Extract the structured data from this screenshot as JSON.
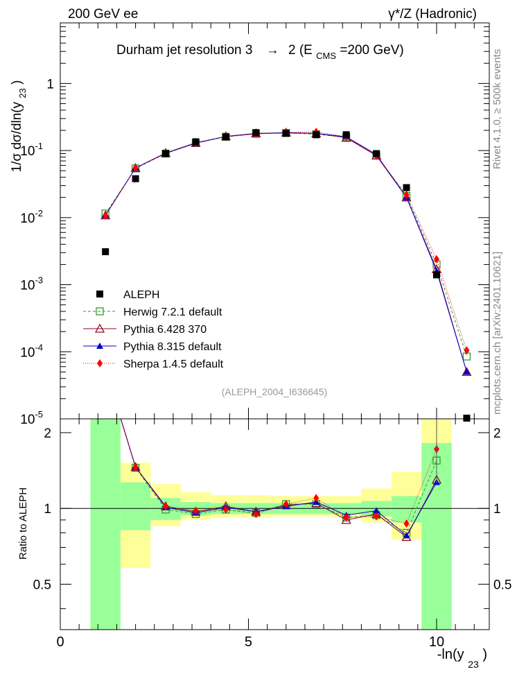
{
  "header": {
    "left": "200 GeV ee",
    "right": "γ*/Z (Hadronic)"
  },
  "side_labels": {
    "rivet": "Rivet 4.1.0, ≥ 500k events",
    "mcplots": "mcplots.cern.ch [arXiv:2401.10621]"
  },
  "chart_data": {
    "type": "scatter",
    "title": "Durham jet resolution 3 → 2 (E_CMS=200 GeV)",
    "title_parts": {
      "main": "Durham jet resolution 3",
      "arrow": "→",
      "after": "2 (E",
      "sub": "CMS",
      "tail": "=200 GeV)"
    },
    "watermark": "(ALEPH_2004_I636645)",
    "xlabel": "-ln(y23)",
    "xlabel_parts": {
      "main": "-ln(y",
      "sub": "23",
      "tail": ")"
    },
    "ylabel": "1/σ dσ/dln(y23)",
    "ylabel_parts": {
      "main": "1/σ  dσ/dln(y",
      "sub": "23",
      "tail": ")"
    },
    "ratio_ylabel": "Ratio to ALEPH",
    "xlim": [
      0,
      11.4
    ],
    "ylim": [
      1e-05,
      8
    ],
    "ratio_ylim": [
      0.33,
      2.27
    ],
    "x_ticks": [
      "0",
      "5",
      "10"
    ],
    "y_ticks": [
      "1",
      "10^-1",
      "10^-2",
      "10^-3",
      "10^-4",
      "10^-5"
    ],
    "ratio_ticks": [
      "2",
      "1",
      "0.5"
    ],
    "bins": [
      [
        0.8,
        1.6
      ],
      [
        1.6,
        2.4
      ],
      [
        2.4,
        3.2
      ],
      [
        3.2,
        4.0
      ],
      [
        4.0,
        4.8
      ],
      [
        4.8,
        5.6
      ],
      [
        5.6,
        6.4
      ],
      [
        6.4,
        7.2
      ],
      [
        7.2,
        8.0
      ],
      [
        8.0,
        8.8
      ],
      [
        8.8,
        9.6
      ],
      [
        9.6,
        10.4
      ],
      [
        10.4,
        11.2
      ]
    ],
    "x": [
      1.2,
      2.0,
      2.8,
      3.6,
      4.4,
      5.2,
      6.0,
      6.8,
      7.6,
      8.4,
      9.2,
      10.0,
      10.8
    ],
    "data": {
      "name": "ALEPH",
      "values": [
        0.0031,
        0.038,
        0.09,
        0.135,
        0.16,
        0.185,
        0.18,
        0.172,
        0.172,
        0.09,
        0.028,
        0.0014,
        6.5e-06
      ]
    },
    "band_inner": [
      [
        0.33,
        2.27
      ],
      [
        0.82,
        1.27
      ],
      [
        0.9,
        1.1
      ],
      [
        0.94,
        1.06
      ],
      [
        0.95,
        1.05
      ],
      [
        0.95,
        1.05
      ],
      [
        0.95,
        1.05
      ],
      [
        0.95,
        1.05
      ],
      [
        0.95,
        1.05
      ],
      [
        0.93,
        1.07
      ],
      [
        0.88,
        1.12
      ],
      [
        0.33,
        1.82
      ],
      [
        0.33,
        0.33
      ]
    ],
    "band_outer": [
      [
        0.33,
        2.27
      ],
      [
        0.58,
        1.52
      ],
      [
        0.85,
        1.25
      ],
      [
        0.9,
        1.16
      ],
      [
        0.92,
        1.13
      ],
      [
        0.92,
        1.13
      ],
      [
        0.93,
        1.12
      ],
      [
        0.93,
        1.12
      ],
      [
        0.92,
        1.12
      ],
      [
        0.88,
        1.2
      ],
      [
        0.75,
        1.4
      ],
      [
        0.33,
        2.27
      ],
      [
        0.33,
        0.33
      ]
    ],
    "series": [
      {
        "name": "Herwig 7.2.1 default",
        "color": "#339933",
        "marker": "open-square",
        "dash": "4,3",
        "values": [
          0.0115,
          0.054,
          0.09,
          0.129,
          0.16,
          0.178,
          0.183,
          0.175,
          0.158,
          0.085,
          0.021,
          0.002,
          8.5e-05
        ],
        "ratio": [
          3.6,
          1.45,
          0.99,
          0.95,
          0.99,
          0.96,
          1.04,
          1.04,
          0.92,
          0.94,
          0.8,
          1.55,
          null
        ]
      },
      {
        "name": "Pythia 6.428 370",
        "color": "#8b0a2a",
        "marker": "open-triangle",
        "dash": "",
        "values": [
          0.0108,
          0.055,
          0.092,
          0.13,
          0.163,
          0.18,
          0.185,
          0.18,
          0.155,
          0.084,
          0.02,
          0.0017,
          5e-05
        ],
        "ratio": [
          3.6,
          1.46,
          1.02,
          0.97,
          1.02,
          0.97,
          1.03,
          1.05,
          0.9,
          0.95,
          0.77,
          1.3,
          null
        ]
      },
      {
        "name": "Pythia 8.315 default",
        "color": "#0000cc",
        "marker": "filled-triangle",
        "dash": "",
        "values": [
          0.0108,
          0.055,
          0.091,
          0.129,
          0.162,
          0.179,
          0.183,
          0.18,
          0.16,
          0.087,
          0.02,
          0.0016,
          5e-05
        ],
        "ratio": [
          3.6,
          1.46,
          1.01,
          0.96,
          1.01,
          0.97,
          1.02,
          1.06,
          0.94,
          0.98,
          0.78,
          1.27,
          null
        ]
      },
      {
        "name": "Sherpa 1.4.5 default",
        "color": "#ff0000",
        "marker": "filled-diamond",
        "dash": "1,2",
        "values": [
          0.0108,
          0.055,
          0.092,
          0.132,
          0.161,
          0.176,
          0.187,
          0.19,
          0.161,
          0.083,
          0.022,
          0.0024,
          0.000105
        ],
        "ratio": [
          3.6,
          1.46,
          1.02,
          0.98,
          0.99,
          0.95,
          1.04,
          1.1,
          0.92,
          0.93,
          0.87,
          1.72,
          null
        ]
      }
    ]
  }
}
